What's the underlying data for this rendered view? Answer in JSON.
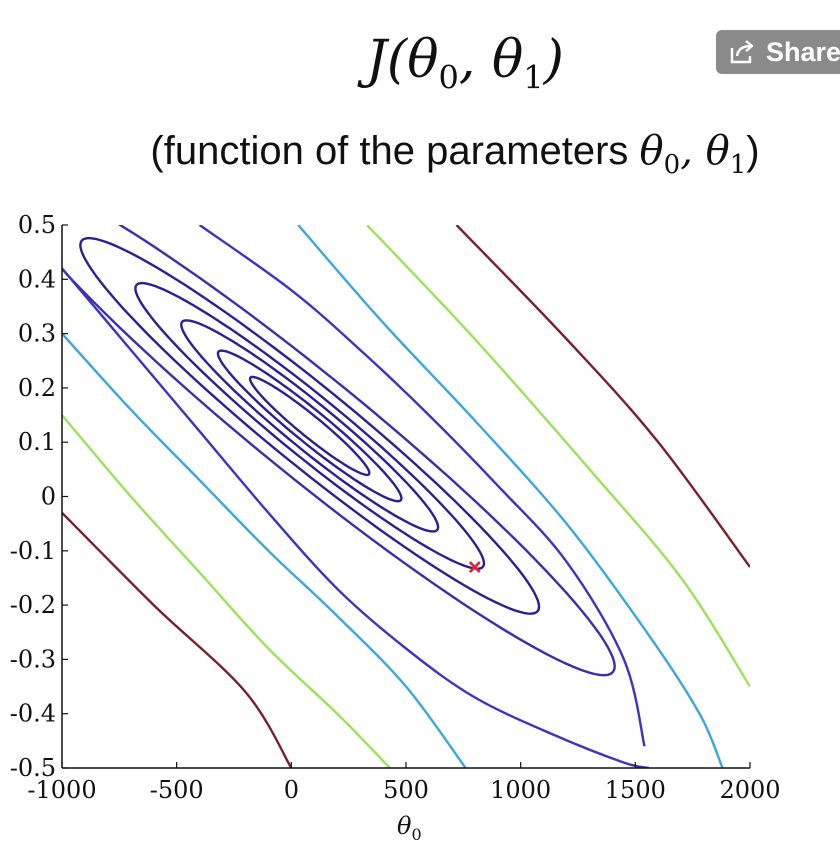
{
  "share_button": {
    "label": "Share",
    "icon": "share-icon"
  },
  "heading": {
    "prefix": "J(θ",
    "sub0": "0",
    "mid": ", θ",
    "sub1": "1",
    "suffix": ")"
  },
  "subheading": {
    "text": "(function of the parameters ",
    "theta_a": "θ",
    "sub0": "0",
    "comma": ", θ",
    "sub1": "1",
    "close": ")"
  },
  "chart_data": {
    "type": "contour",
    "title": "",
    "xlabel": "θ",
    "xlabel_sub": "0",
    "ylabel": "",
    "xlim": [
      -1000,
      2000
    ],
    "ylim": [
      -0.5,
      0.5
    ],
    "xticks": [
      -1000,
      -500,
      0,
      500,
      1000,
      1500,
      2000
    ],
    "xtick_labels": [
      "-1000",
      "-500",
      "0",
      "500",
      "1000",
      "1500",
      "2000"
    ],
    "yticks": [
      0.5,
      0.4,
      0.3,
      0.2,
      0.1,
      0,
      -0.1,
      -0.2,
      -0.3,
      -0.4,
      -0.5
    ],
    "ytick_labels": [
      "0.5",
      "0.4",
      "0.3",
      "0.2",
      "0.1",
      "0",
      "-0.1",
      "-0.2",
      "-0.3",
      "-0.4",
      "-0.5"
    ],
    "grid": false,
    "center": {
      "x": 80,
      "y": 0.13
    },
    "ellipses": [
      {
        "a": 260,
        "b": 0.046,
        "color": "#2b1f96"
      },
      {
        "a": 400,
        "b": 0.07,
        "color": "#2b1f96"
      },
      {
        "a": 560,
        "b": 0.1,
        "color": "#2b1f96"
      },
      {
        "a": 760,
        "b": 0.13,
        "color": "#2b1f96"
      },
      {
        "a": 1000,
        "b": 0.17,
        "color": "#2b1f96"
      },
      {
        "a": 1330,
        "b": 0.22,
        "color": "#3a2db0"
      }
    ],
    "open_contours": [
      {
        "color": "#3c33c4",
        "points": [
          [
            -1000,
            0.42
          ],
          [
            -700,
            0.27
          ],
          [
            -400,
            0.12
          ],
          [
            -100,
            -0.03
          ],
          [
            200,
            -0.17
          ],
          [
            500,
            -0.28
          ],
          [
            800,
            -0.37
          ],
          [
            1150,
            -0.44
          ],
          [
            1450,
            -0.49
          ],
          [
            1560,
            -0.5
          ]
        ]
      },
      {
        "color": "#3c33c4",
        "points": [
          [
            -400,
            0.5
          ],
          [
            0,
            0.38
          ],
          [
            300,
            0.27
          ],
          [
            600,
            0.15
          ],
          [
            900,
            0.02
          ],
          [
            1200,
            -0.12
          ],
          [
            1450,
            -0.3
          ],
          [
            1540,
            -0.46
          ]
        ]
      },
      {
        "color": "#3aa6dc",
        "points": [
          [
            -1000,
            0.3
          ],
          [
            -700,
            0.16
          ],
          [
            -400,
            0.03
          ],
          [
            -100,
            -0.1
          ],
          [
            200,
            -0.22
          ],
          [
            500,
            -0.35
          ],
          [
            760,
            -0.5
          ]
        ]
      },
      {
        "color": "#3aa6dc",
        "points": [
          [
            30,
            0.5
          ],
          [
            400,
            0.32
          ],
          [
            800,
            0.14
          ],
          [
            1200,
            -0.05
          ],
          [
            1550,
            -0.25
          ],
          [
            1780,
            -0.4
          ],
          [
            1880,
            -0.5
          ]
        ]
      },
      {
        "color": "#9ee05a",
        "points": [
          [
            -1000,
            0.15
          ],
          [
            -700,
            0.0
          ],
          [
            -400,
            -0.14
          ],
          [
            -100,
            -0.28
          ],
          [
            200,
            -0.4
          ],
          [
            430,
            -0.5
          ]
        ]
      },
      {
        "color": "#9ee05a",
        "points": [
          [
            330,
            0.5
          ],
          [
            800,
            0.29
          ],
          [
            1300,
            0.05
          ],
          [
            1700,
            -0.15
          ],
          [
            2000,
            -0.35
          ]
        ]
      },
      {
        "color": "#7a1f2f",
        "points": [
          [
            -1000,
            -0.03
          ],
          [
            -600,
            -0.2
          ],
          [
            -200,
            -0.36
          ],
          [
            0,
            -0.5
          ]
        ]
      },
      {
        "color": "#7a1f2f",
        "points": [
          [
            720,
            0.5
          ],
          [
            1200,
            0.29
          ],
          [
            1600,
            0.1
          ],
          [
            2000,
            -0.13
          ]
        ]
      }
    ],
    "marker": {
      "x": 800,
      "y": -0.13,
      "shape": "x",
      "color": "#e0242c"
    }
  }
}
